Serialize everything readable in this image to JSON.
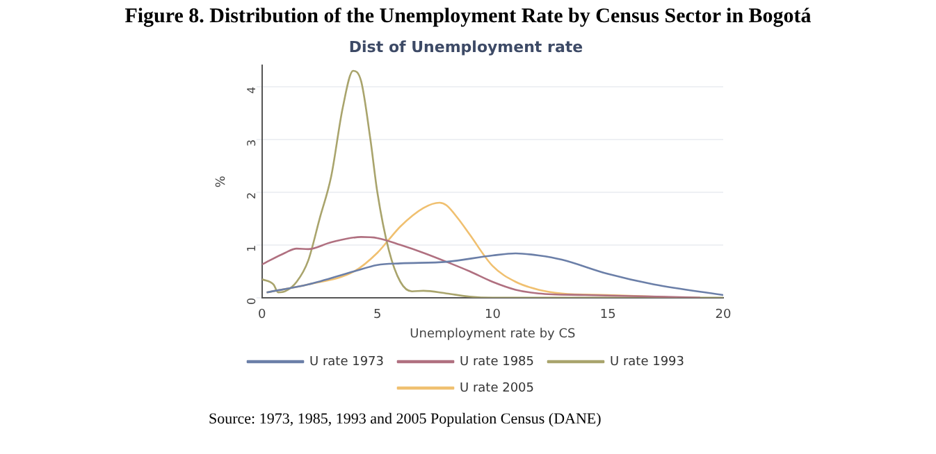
{
  "chart_data": {
    "type": "line",
    "title": "Figure 8. Distribution of the Unemployment Rate by Census Sector in Bogotá",
    "subtitle": "Dist of Unemployment rate",
    "xlabel": "Unemployment rate by CS",
    "ylabel": "%",
    "xlim": [
      0,
      20
    ],
    "xticks": [
      0,
      5,
      10,
      15,
      20
    ],
    "ylim": [
      0,
      4.4
    ],
    "yticks": [
      0,
      1,
      2,
      3,
      4
    ],
    "grid": "y",
    "legend": "bottom",
    "marker": "none",
    "line_style": "solid",
    "annotations": [
      "Source: 1973, 1985, 1993 and 2005 Population Census (DANE)"
    ],
    "series": [
      {
        "name": "U rate 1973",
        "color": "#6b7fa8",
        "x": [
          0.2,
          2,
          4,
          5,
          6,
          8,
          10,
          11,
          12,
          13,
          15,
          17,
          20
        ],
        "values": [
          0.1,
          0.25,
          0.5,
          0.62,
          0.65,
          0.68,
          0.8,
          0.84,
          0.8,
          0.72,
          0.45,
          0.25,
          0.05
        ]
      },
      {
        "name": "U rate 1985",
        "color": "#b07080",
        "x": [
          0,
          1,
          1.5,
          2,
          3,
          4.3,
          5,
          6,
          7,
          8,
          9,
          10,
          11,
          12,
          14,
          16,
          19
        ],
        "values": [
          0.63,
          0.85,
          0.93,
          0.92,
          1.05,
          1.15,
          1.13,
          1.0,
          0.85,
          0.68,
          0.5,
          0.3,
          0.15,
          0.08,
          0.05,
          0.03,
          0
        ]
      },
      {
        "name": "U rate 1993",
        "color": "#a9a46c",
        "x": [
          0,
          0.5,
          0.7,
          1,
          1.5,
          2,
          2.5,
          3,
          3.5,
          3.95,
          4.3,
          4.7,
          5,
          5.5,
          6,
          6.5,
          7,
          8,
          9,
          10,
          12,
          20
        ],
        "values": [
          0.35,
          0.25,
          0.1,
          0.12,
          0.3,
          0.7,
          1.5,
          2.3,
          3.6,
          4.3,
          4.1,
          3.0,
          2.0,
          0.9,
          0.3,
          0.12,
          0.13,
          0.08,
          0.02,
          0,
          0,
          0
        ]
      },
      {
        "name": "U rate 2005",
        "color": "#f0c070",
        "x": [
          0.2,
          2,
          4,
          5,
          5.5,
          6,
          7,
          7.7,
          8,
          8.5,
          9,
          10,
          11,
          12,
          13,
          15,
          17,
          18
        ],
        "values": [
          0.1,
          0.25,
          0.5,
          0.85,
          1.1,
          1.35,
          1.7,
          1.8,
          1.75,
          1.5,
          1.2,
          0.6,
          0.3,
          0.15,
          0.08,
          0.05,
          0.02,
          0
        ]
      }
    ]
  }
}
